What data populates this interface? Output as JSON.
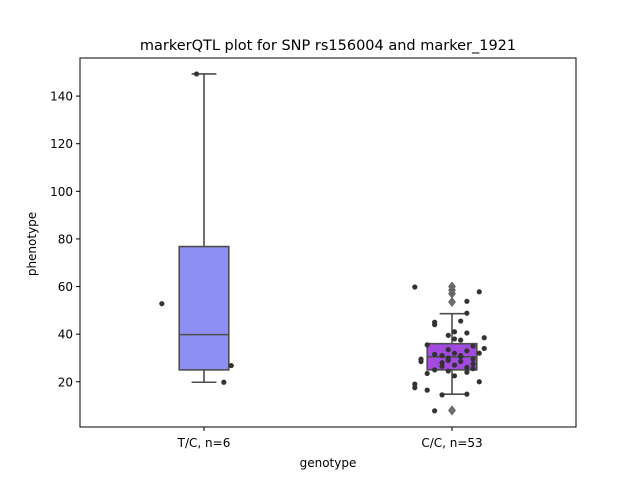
{
  "chart_data": {
    "type": "box",
    "title": "markerQTL plot for SNP rs156004 and marker_1921",
    "xlabel": "genotype",
    "ylabel": "phenotype",
    "ylim": [
      1,
      156
    ],
    "yticks": [
      20,
      40,
      60,
      80,
      100,
      120,
      140
    ],
    "grid": false,
    "categories": [
      "T/C, n=6",
      "C/C, n=53"
    ],
    "boxes": [
      {
        "category": "T/C, n=6",
        "color": "#8e8ff2",
        "whisker_low": 19.8,
        "q1": 25.0,
        "median": 39.8,
        "q3": 76.8,
        "whisker_high": 149.3,
        "fliers": []
      },
      {
        "category": "C/C, n=53",
        "color": "#a44ae0",
        "whisker_low": 14.8,
        "q1": 25.0,
        "median": 30.5,
        "q3": 36.0,
        "whisker_high": 48.6,
        "fliers": [
          53.5,
          57.0,
          58.5,
          60.0,
          8.0
        ]
      }
    ],
    "points": [
      {
        "category": "T/C, n=6",
        "offset": -0.34,
        "values": [
          52.8
        ]
      },
      {
        "category": "T/C, n=6",
        "offset": -0.06,
        "values": [
          149.3
        ]
      },
      {
        "category": "T/C, n=6",
        "offset": 0.16,
        "values": [
          19.8
        ]
      },
      {
        "category": "T/C, n=6",
        "offset": 0.22,
        "values": [
          26.8
        ]
      },
      {
        "category": "C/C, n=53",
        "offset": -0.3,
        "values": [
          59.8,
          19.0,
          17.5
        ]
      },
      {
        "category": "C/C, n=53",
        "offset": -0.25,
        "values": [
          28.5,
          29.5
        ]
      },
      {
        "category": "C/C, n=53",
        "offset": -0.2,
        "values": [
          23.5,
          16.5,
          35.5
        ]
      },
      {
        "category": "C/C, n=53",
        "offset": -0.14,
        "values": [
          45.0,
          44.0,
          25.0,
          31.5,
          7.8
        ]
      },
      {
        "category": "C/C, n=53",
        "offset": -0.08,
        "values": [
          31.0,
          26.5,
          28.0,
          14.5
        ]
      },
      {
        "category": "C/C, n=53",
        "offset": -0.03,
        "values": [
          39.5,
          33.5,
          29.0,
          24.5,
          30.0
        ]
      },
      {
        "category": "C/C, n=53",
        "offset": 0.02,
        "values": [
          38.0,
          41.0,
          27.0,
          32.0,
          22.5
        ]
      },
      {
        "category": "C/C, n=53",
        "offset": 0.07,
        "values": [
          45.5,
          37.5,
          30.5,
          28.5,
          31.0
        ]
      },
      {
        "category": "C/C, n=53",
        "offset": 0.12,
        "values": [
          53.8,
          48.8,
          40.5,
          33.0,
          26.0,
          24.0,
          14.8
        ]
      },
      {
        "category": "C/C, n=53",
        "offset": 0.17,
        "values": [
          35.0,
          29.5,
          25.5,
          27.5
        ]
      },
      {
        "category": "C/C, n=53",
        "offset": 0.22,
        "values": [
          57.8,
          32.0,
          20.0
        ]
      },
      {
        "category": "C/C, n=53",
        "offset": 0.26,
        "values": [
          38.5,
          34.0
        ]
      }
    ]
  }
}
